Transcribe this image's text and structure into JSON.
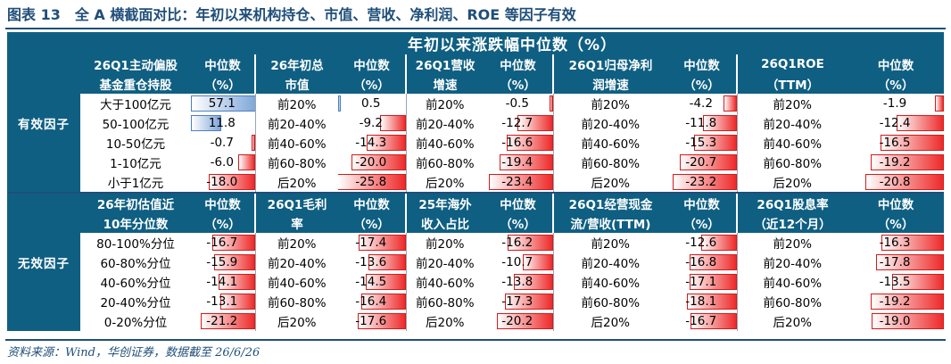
{
  "title": "图表 13　全 A 横截面对比：年初以来机构持仓、市值、营收、净利润、ROE 等因子有效",
  "band": "年初以来涨跌幅中位数（%）",
  "source": "资料来源：Wind，华创证券，数据截至 26/6/26",
  "groups": [
    {
      "label": "有效因子",
      "factors": [
        {
          "h1": "26Q1主动偏股",
          "h2": "基金重仓持股",
          "m1": "中位数",
          "m2": "（%）",
          "rows": [
            [
              "大于100亿元",
              57.1,
              "57.1"
            ],
            [
              "50-100亿元",
              11.8,
              "11.8"
            ],
            [
              "10-50亿元",
              -0.7,
              "-0.7"
            ],
            [
              "1-10亿元",
              -6.0,
              "-6.0"
            ],
            [
              "小于1亿元",
              -18.0,
              "-18.0"
            ]
          ]
        },
        {
          "h1": "26年初总",
          "h2": "市值",
          "m1": "中位数",
          "m2": "（%）",
          "rows": [
            [
              "前20%",
              0.5,
              "0.5"
            ],
            [
              "前20-40%",
              -9.2,
              "-9.2"
            ],
            [
              "前40-60%",
              -14.3,
              "-14.3"
            ],
            [
              "前60-80%",
              -20.0,
              "-20.0"
            ],
            [
              "后20%",
              -25.8,
              "-25.8"
            ]
          ]
        },
        {
          "h1": "26Q1营收",
          "h2": "增速",
          "m1": "中位数",
          "m2": "（%）",
          "rows": [
            [
              "前20%",
              -0.5,
              "-0.5"
            ],
            [
              "前20-40%",
              -12.7,
              "-12.7"
            ],
            [
              "前40-60%",
              -16.6,
              "-16.6"
            ],
            [
              "前60-80%",
              -19.4,
              "-19.4"
            ],
            [
              "后20%",
              -23.4,
              "-23.4"
            ]
          ]
        },
        {
          "h1": "26Q1归母净利",
          "h2": "润增速",
          "m1": "中位数",
          "m2": "（%）",
          "rows": [
            [
              "前20%",
              -4.2,
              "-4.2"
            ],
            [
              "前20-40%",
              -11.8,
              "-11.8"
            ],
            [
              "前40-60%",
              -15.3,
              "-15.3"
            ],
            [
              "前60-80%",
              -20.7,
              "-20.7"
            ],
            [
              "后20%",
              -23.2,
              "-23.2"
            ]
          ]
        },
        {
          "h1": "26Q1ROE",
          "h2": "（TTM）",
          "m1": "中位数",
          "m2": "（%）",
          "rows": [
            [
              "前20%",
              -1.9,
              "-1.9"
            ],
            [
              "前20-40%",
              -12.4,
              "-12.4"
            ],
            [
              "前40-60%",
              -16.5,
              "-16.5"
            ],
            [
              "前60-80%",
              -19.2,
              "-19.2"
            ],
            [
              "后20%",
              -20.8,
              "-20.8"
            ]
          ]
        }
      ]
    },
    {
      "label": "无效因子",
      "factors": [
        {
          "h1": "26年初估值近",
          "h2": "10年分位数",
          "m1": "中位数",
          "m2": "（%）",
          "rows": [
            [
              "80-100%分位",
              -16.7,
              "-16.7"
            ],
            [
              "60-80%分位",
              -15.9,
              "-15.9"
            ],
            [
              "40-60%分位",
              -14.1,
              "-14.1"
            ],
            [
              "20-40%分位",
              -13.1,
              "-13.1"
            ],
            [
              "0-20%分位",
              -21.2,
              "-21.2"
            ]
          ]
        },
        {
          "h1": "26Q1毛利",
          "h2": "率",
          "m1": "中位数",
          "m2": "（%）",
          "rows": [
            [
              "前20%",
              -17.4,
              "-17.4"
            ],
            [
              "前20-40%",
              -13.6,
              "-13.6"
            ],
            [
              "前40-60%",
              -14.5,
              "-14.5"
            ],
            [
              "前60-80%",
              -16.4,
              "-16.4"
            ],
            [
              "后20%",
              -17.6,
              "-17.6"
            ]
          ]
        },
        {
          "h1": "25年海外",
          "h2": "收入占比",
          "m1": "中位数",
          "m2": "（%）",
          "rows": [
            [
              "前20%",
              -16.2,
              "-16.2"
            ],
            [
              "前20-40%",
              -10.7,
              "-10.7"
            ],
            [
              "前40-60%",
              -13.8,
              "-13.8"
            ],
            [
              "前60-80%",
              -17.3,
              "-17.3"
            ],
            [
              "后20%",
              -20.2,
              "-20.2"
            ]
          ]
        },
        {
          "h1": "26Q1经营现金",
          "h2": "流/营收(TTM)",
          "m1": "中位数",
          "m2": "（%）",
          "rows": [
            [
              "前20%",
              -12.6,
              "-12.6"
            ],
            [
              "前20-40%",
              -16.8,
              "-16.8"
            ],
            [
              "前40-60%",
              -17.1,
              "-17.1"
            ],
            [
              "前60-80%",
              -18.1,
              "-18.1"
            ],
            [
              "后20%",
              -16.7,
              "-16.7"
            ]
          ]
        },
        {
          "h1": "26Q1股息率",
          "h2": "（近12个月）",
          "m1": "中位数",
          "m2": "（%）",
          "rows": [
            [
              "前20%",
              -16.3,
              "-16.3"
            ],
            [
              "前20-40%",
              -17.8,
              "-17.8"
            ],
            [
              "前40-60%",
              -13.5,
              "-13.5"
            ],
            [
              "前60-80%",
              -19.2,
              "-19.2"
            ],
            [
              "后20%",
              -19.0,
              "-19.0"
            ]
          ]
        }
      ]
    }
  ]
}
